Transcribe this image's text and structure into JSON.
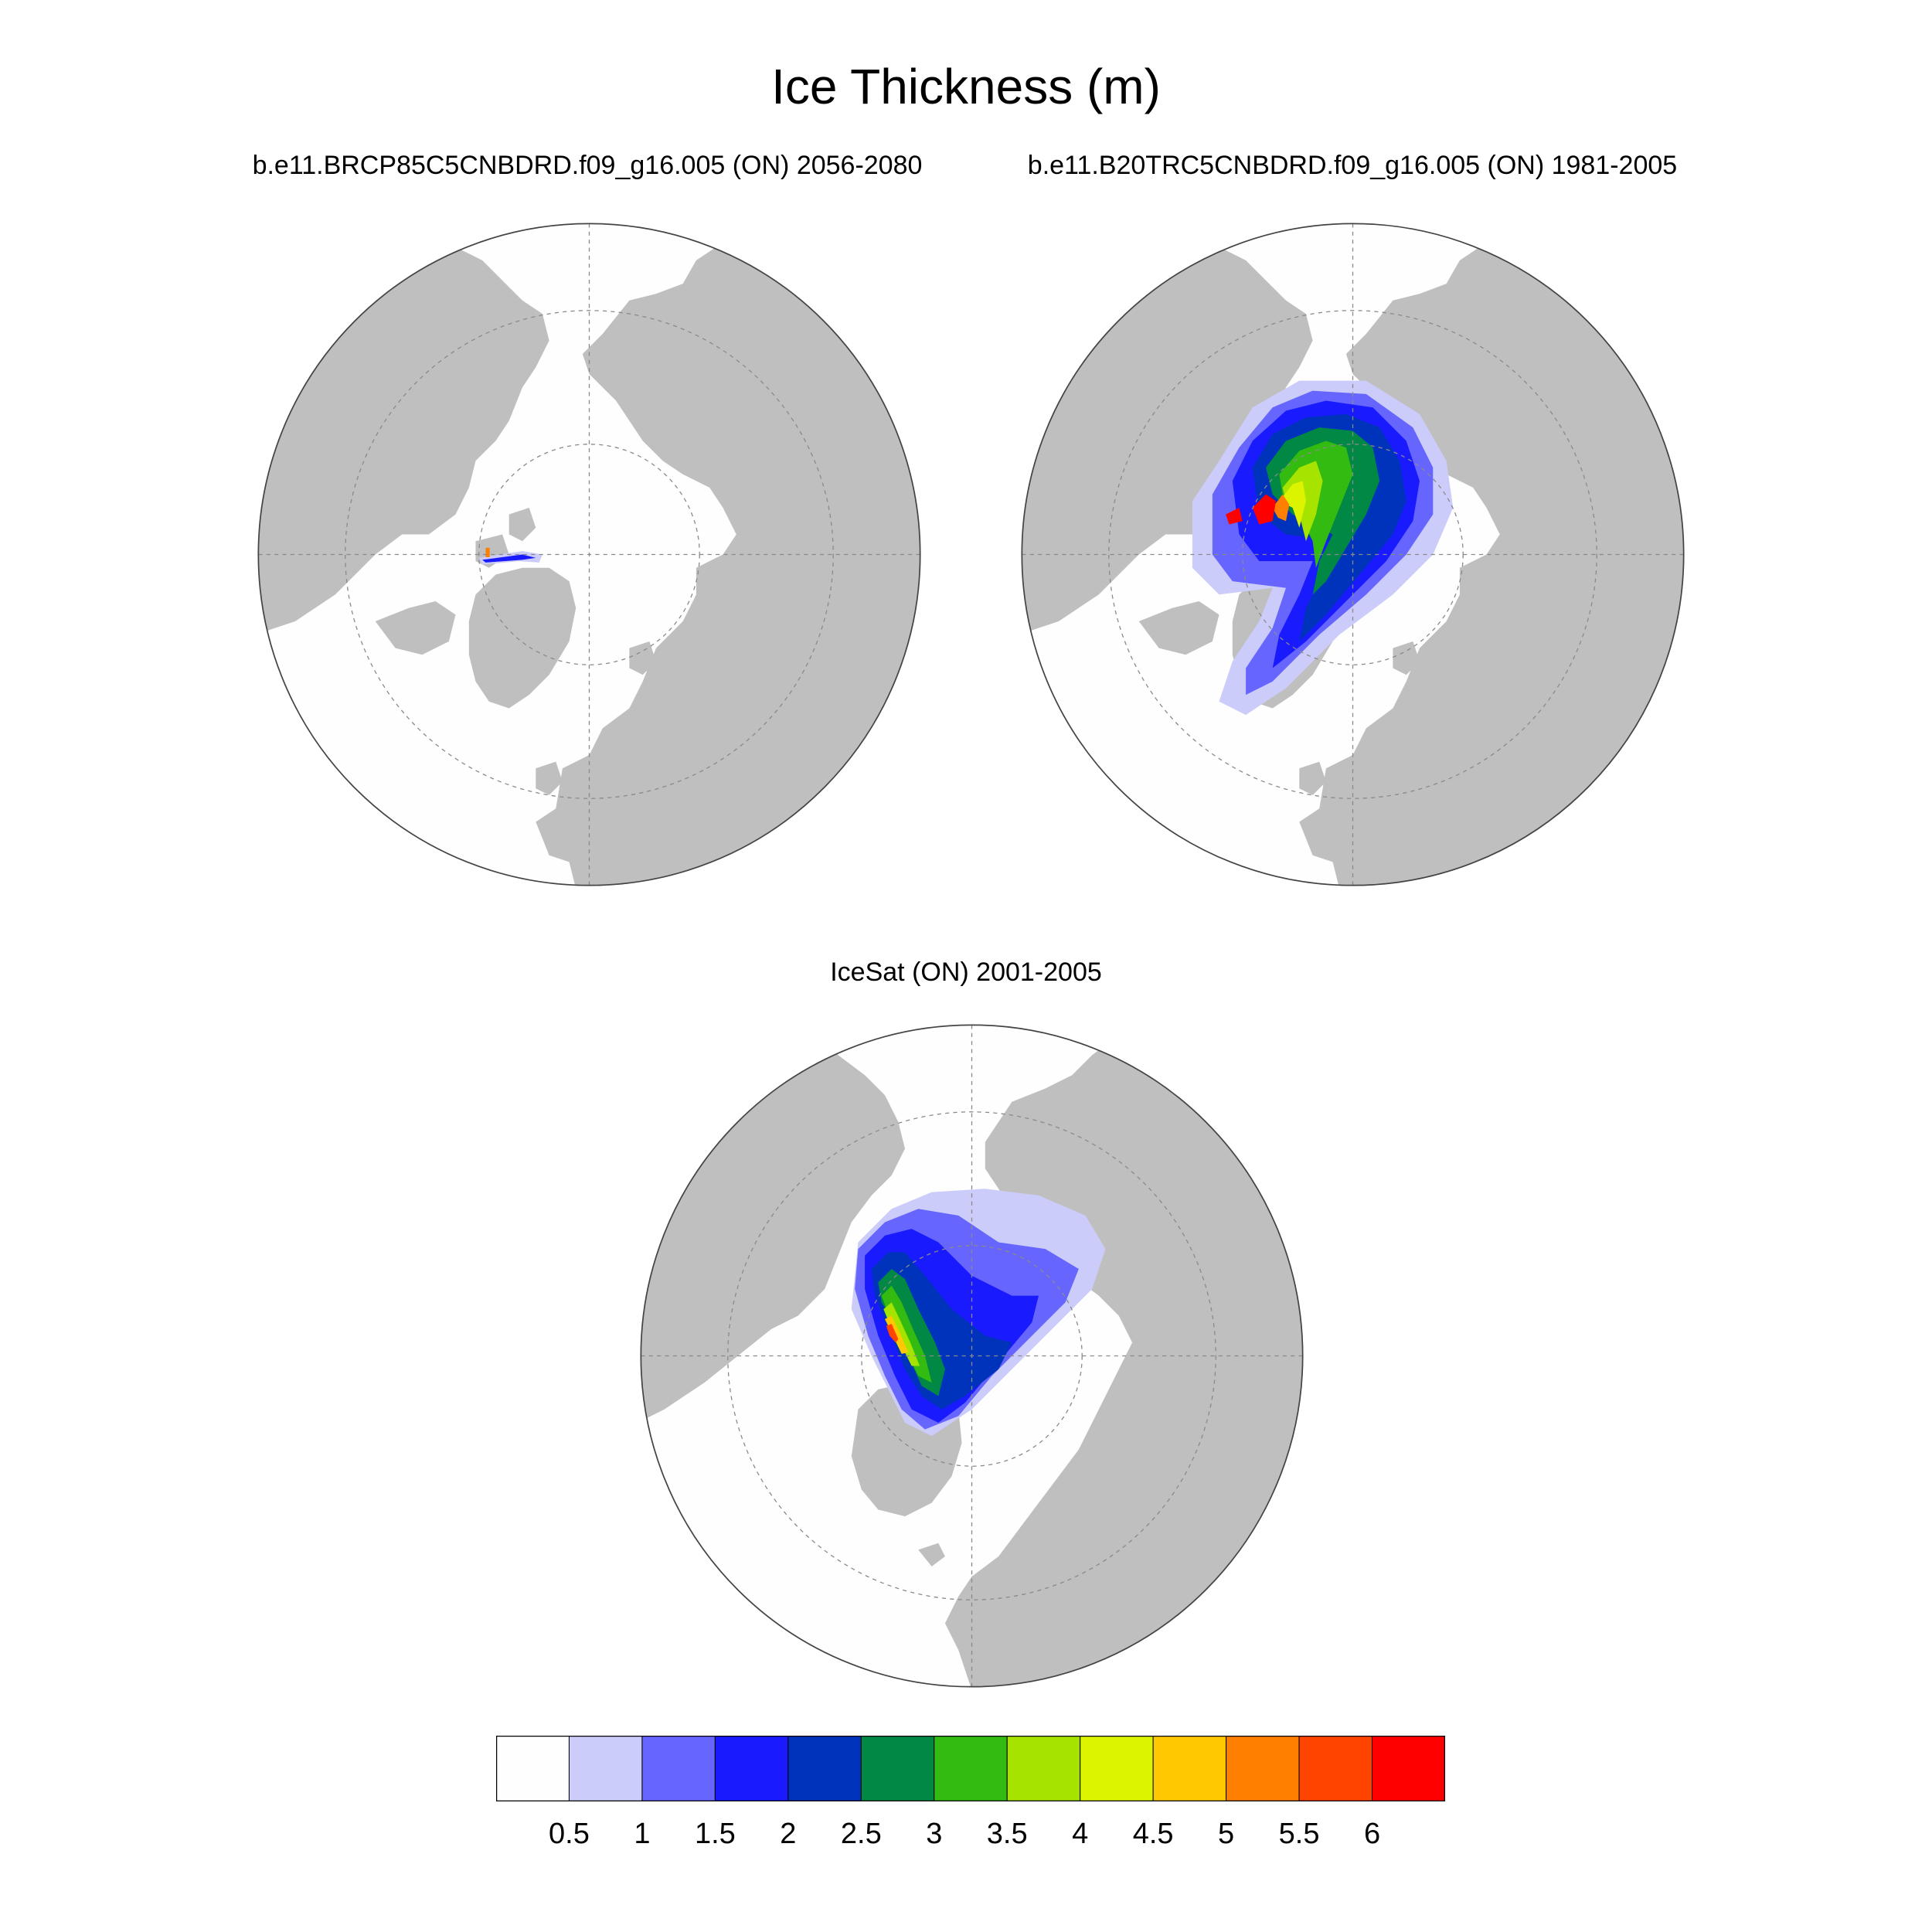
{
  "title": "Ice Thickness (m)",
  "panels": [
    {
      "title": "b.e11.BRCP85C5CNBDRD.f09_g16.005 (ON) 2056-2080"
    },
    {
      "title": "b.e11.B20TRC5CNBDRD.f09_g16.005 (ON) 1981-2005"
    },
    {
      "title": "IceSat (ON) 2001-2005"
    }
  ],
  "colorbar": {
    "labels": [
      "0.5",
      "1",
      "1.5",
      "2",
      "2.5",
      "3",
      "3.5",
      "4",
      "4.5",
      "5",
      "5.5",
      "6"
    ],
    "colors": [
      "#fefefe",
      "#ccccfa",
      "#6666ff",
      "#1a1aff",
      "#0033bb",
      "#008844",
      "#33bb11",
      "#a6e400",
      "#ddf400",
      "#ffc800",
      "#ff7f00",
      "#ff4400",
      "#ff0000"
    ]
  },
  "colors": {
    "land": "#bfbfbf",
    "ocean": "#fefefe",
    "grid": "#8a8a8a"
  }
}
